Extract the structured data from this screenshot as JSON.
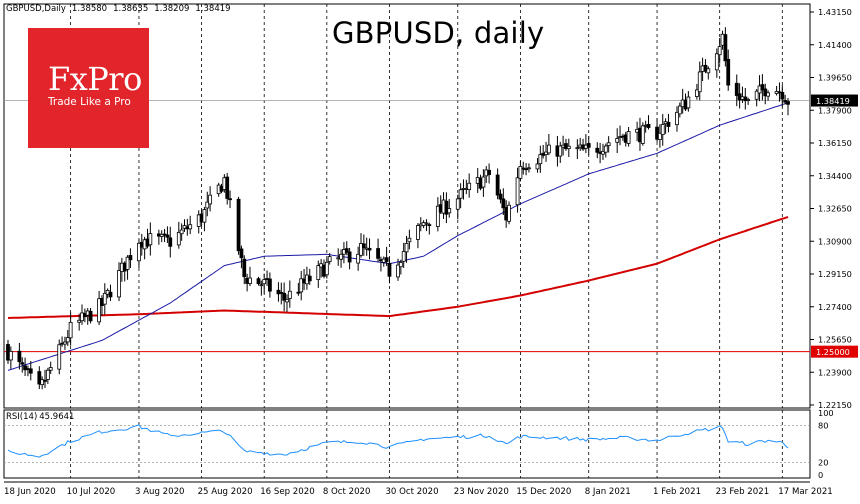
{
  "header": {
    "symbol": "GBPUSD,Daily",
    "open": "1.38580",
    "high": "1.38635",
    "low": "1.38209",
    "close": "1.38419"
  },
  "title": "GBPUSD, daily",
  "logo": {
    "brand": "FxPro",
    "tagline": "Trade Like a Pro",
    "color": "#e1252b"
  },
  "colors": {
    "ma_fast": "#1a1aa6",
    "ma_slow": "#d40000",
    "rsi": "#1e90ff",
    "level_line": "#e00000",
    "candle_up_body": "#ffffff",
    "candle_down_body": "#000000",
    "grid": "#000000",
    "current_price_label_bg": "#000000",
    "level_label_bg": "#e00000"
  },
  "chart_data": [
    {
      "type": "candlestick",
      "title": "GBPUSD, daily",
      "x_tick_labels": [
        "18 Jun 2020",
        "10 Jul 2020",
        "3 Aug 2020",
        "25 Aug 2020",
        "16 Sep 2020",
        "8 Oct 2020",
        "30 Oct 2020",
        "23 Nov 2020",
        "15 Dec 2020",
        "8 Jan 2021",
        "1 Feb 2021",
        "23 Feb 2021",
        "17 Mar 2021"
      ],
      "y_tick_labels": [
        "1.43150",
        "1.41400",
        "1.39650",
        "1.37900",
        "1.36150",
        "1.34400",
        "1.32650",
        "1.30900",
        "1.29150",
        "1.27400",
        "1.25650",
        "1.23900",
        "1.22150"
      ],
      "ylim": [
        1.2215,
        1.4315
      ],
      "horizontal_level": {
        "value": 1.25,
        "label": "1.25000"
      },
      "current_price": {
        "value": 1.38419,
        "label": "1.38419"
      },
      "key_points": [
        {
          "date": "18 Jun 2020",
          "close": 1.25
        },
        {
          "date": "29 Jun 2020",
          "close": 1.229
        },
        {
          "date": "10 Jul 2020",
          "close": 1.262
        },
        {
          "date": "21 Jul 2020",
          "close": 1.275
        },
        {
          "date": "3 Aug 2020",
          "close": 1.31
        },
        {
          "date": "14 Aug 2020",
          "close": 1.309
        },
        {
          "date": "25 Aug 2020",
          "close": 1.322
        },
        {
          "date": "2 Sep 2020",
          "close": 1.342
        },
        {
          "date": "9 Sep 2020",
          "close": 1.29
        },
        {
          "date": "16 Sep 2020",
          "close": 1.286
        },
        {
          "date": "23 Sep 2020",
          "close": 1.278
        },
        {
          "date": "8 Oct 2020",
          "close": 1.296
        },
        {
          "date": "20 Oct 2020",
          "close": 1.305
        },
        {
          "date": "30 Oct 2020",
          "close": 1.293
        },
        {
          "date": "11 Nov 2020",
          "close": 1.319
        },
        {
          "date": "23 Nov 2020",
          "close": 1.332
        },
        {
          "date": "4 Dec 2020",
          "close": 1.345
        },
        {
          "date": "10 Dec 2020",
          "close": 1.322
        },
        {
          "date": "15 Dec 2020",
          "close": 1.35
        },
        {
          "date": "28 Dec 2020",
          "close": 1.358
        },
        {
          "date": "8 Jan 2021",
          "close": 1.357
        },
        {
          "date": "20 Jan 2021",
          "close": 1.366
        },
        {
          "date": "1 Feb 2021",
          "close": 1.367
        },
        {
          "date": "11 Feb 2021",
          "close": 1.383
        },
        {
          "date": "24 Feb 2021",
          "close": 1.418
        },
        {
          "date": "26 Feb 2021",
          "close": 1.392
        },
        {
          "date": "5 Mar 2021",
          "close": 1.383
        },
        {
          "date": "12 Mar 2021",
          "close": 1.392
        },
        {
          "date": "17 Mar 2021",
          "close": 1.389
        },
        {
          "date": "19 Mar 2021",
          "close": 1.38419
        }
      ],
      "ma_fast_points": [
        {
          "date": "18 Jun 2020",
          "value": 1.24
        },
        {
          "date": "21 Jul 2020",
          "value": 1.256
        },
        {
          "date": "14 Aug 2020",
          "value": 1.276
        },
        {
          "date": "2 Sep 2020",
          "value": 1.296
        },
        {
          "date": "16 Sep 2020",
          "value": 1.301
        },
        {
          "date": "8 Oct 2020",
          "value": 1.302
        },
        {
          "date": "30 Oct 2020",
          "value": 1.297
        },
        {
          "date": "11 Nov 2020",
          "value": 1.301
        },
        {
          "date": "23 Nov 2020",
          "value": 1.312
        },
        {
          "date": "15 Dec 2020",
          "value": 1.329
        },
        {
          "date": "8 Jan 2021",
          "value": 1.345
        },
        {
          "date": "1 Feb 2021",
          "value": 1.356
        },
        {
          "date": "23 Feb 2021",
          "value": 1.371
        },
        {
          "date": "19 Mar 2021",
          "value": 1.383
        }
      ],
      "ma_slow_points": [
        {
          "date": "18 Jun 2020",
          "value": 1.268
        },
        {
          "date": "3 Aug 2020",
          "value": 1.27
        },
        {
          "date": "2 Sep 2020",
          "value": 1.272
        },
        {
          "date": "30 Oct 2020",
          "value": 1.269
        },
        {
          "date": "23 Nov 2020",
          "value": 1.274
        },
        {
          "date": "15 Dec 2020",
          "value": 1.28
        },
        {
          "date": "8 Jan 2021",
          "value": 1.288
        },
        {
          "date": "1 Feb 2021",
          "value": 1.297
        },
        {
          "date": "23 Feb 2021",
          "value": 1.31
        },
        {
          "date": "19 Mar 2021",
          "value": 1.322
        }
      ]
    },
    {
      "type": "line",
      "title": "RSI(14) 45.9641",
      "label": "RSI(14)",
      "value_label": "45.9641",
      "y_tick_labels": [
        "100",
        "80",
        "20",
        "0"
      ],
      "ylim": [
        0,
        100
      ],
      "levels": [
        80,
        20
      ],
      "points": [
        {
          "date": "18 Jun 2020",
          "value": 38
        },
        {
          "date": "29 Jun 2020",
          "value": 30
        },
        {
          "date": "10 Jul 2020",
          "value": 55
        },
        {
          "date": "21 Jul 2020",
          "value": 70
        },
        {
          "date": "3 Aug 2020",
          "value": 78
        },
        {
          "date": "14 Aug 2020",
          "value": 63
        },
        {
          "date": "25 Aug 2020",
          "value": 68
        },
        {
          "date": "2 Sep 2020",
          "value": 71
        },
        {
          "date": "9 Sep 2020",
          "value": 38
        },
        {
          "date": "16 Sep 2020",
          "value": 36
        },
        {
          "date": "23 Sep 2020",
          "value": 33
        },
        {
          "date": "8 Oct 2020",
          "value": 52
        },
        {
          "date": "20 Oct 2020",
          "value": 54
        },
        {
          "date": "30 Oct 2020",
          "value": 45
        },
        {
          "date": "11 Nov 2020",
          "value": 58
        },
        {
          "date": "23 Nov 2020",
          "value": 61
        },
        {
          "date": "4 Dec 2020",
          "value": 64
        },
        {
          "date": "10 Dec 2020",
          "value": 50
        },
        {
          "date": "15 Dec 2020",
          "value": 62
        },
        {
          "date": "28 Dec 2020",
          "value": 60
        },
        {
          "date": "8 Jan 2021",
          "value": 57
        },
        {
          "date": "20 Jan 2021",
          "value": 60
        },
        {
          "date": "1 Feb 2021",
          "value": 56
        },
        {
          "date": "11 Feb 2021",
          "value": 67
        },
        {
          "date": "24 Feb 2021",
          "value": 78
        },
        {
          "date": "26 Feb 2021",
          "value": 54
        },
        {
          "date": "5 Mar 2021",
          "value": 50
        },
        {
          "date": "12 Mar 2021",
          "value": 56
        },
        {
          "date": "17 Mar 2021",
          "value": 52
        },
        {
          "date": "19 Mar 2021",
          "value": 46
        }
      ]
    }
  ]
}
